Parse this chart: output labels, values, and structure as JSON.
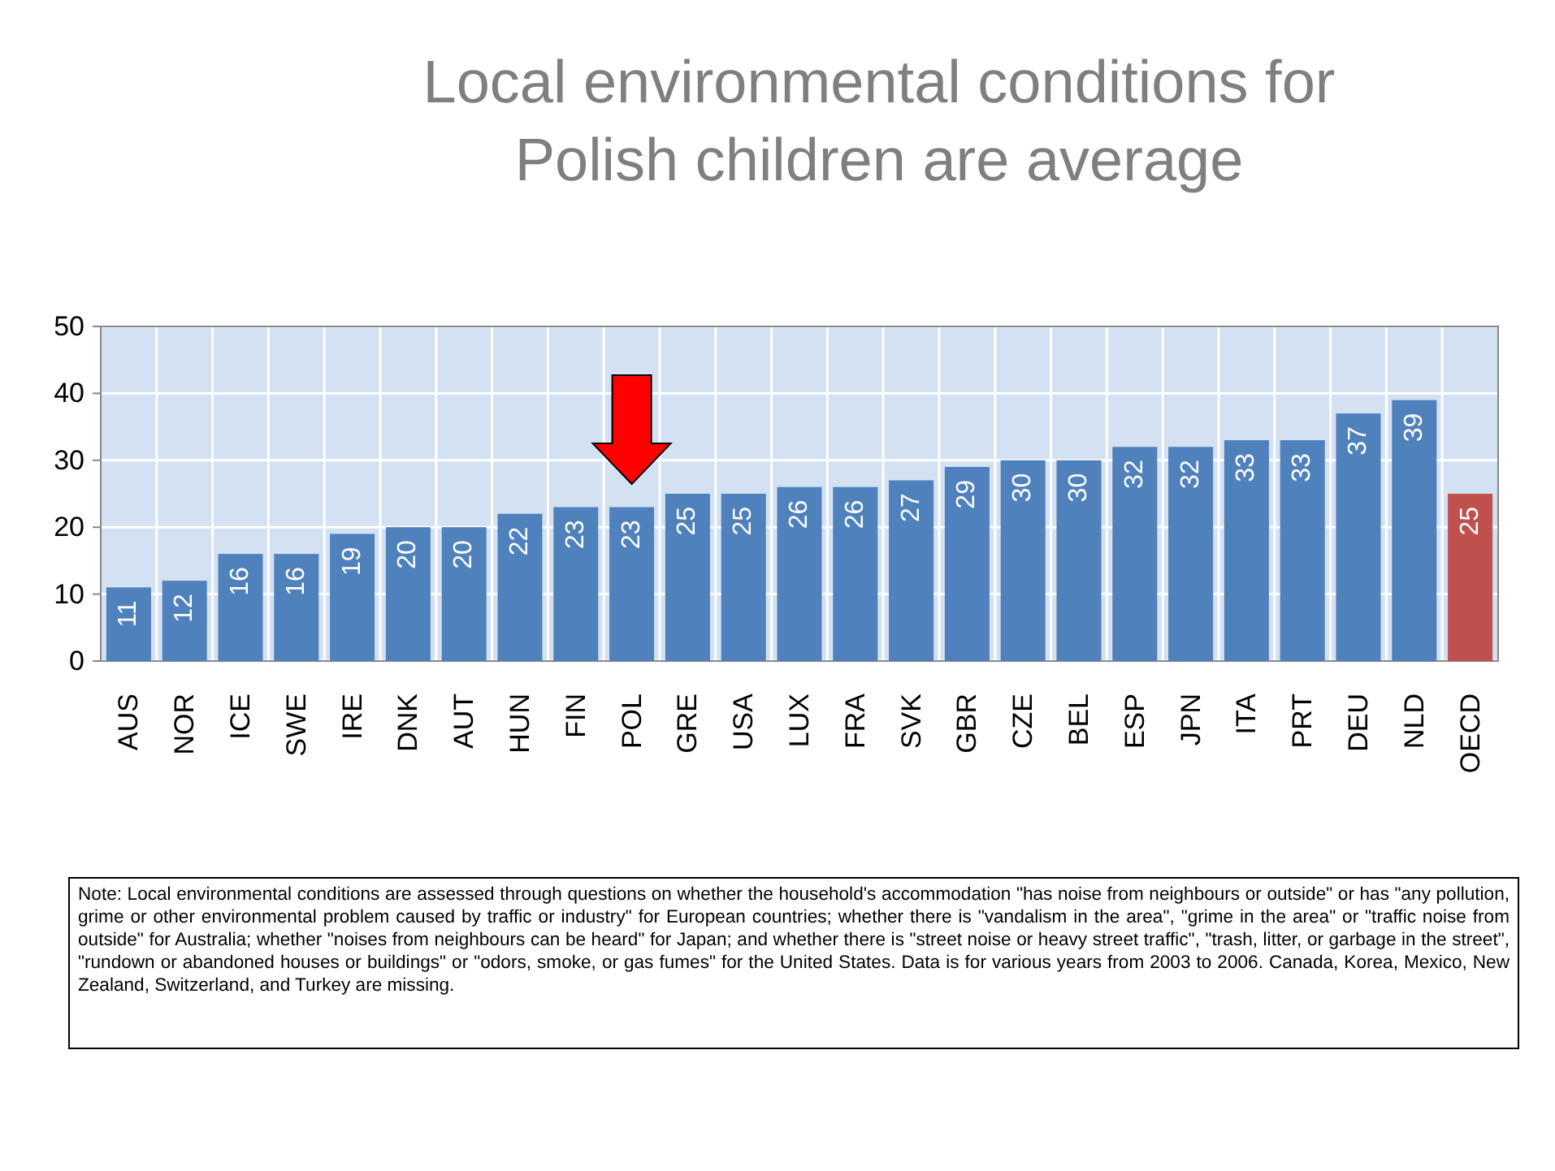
{
  "chart_data": {
    "type": "bar",
    "title": "Local environmental conditions for Polish children are average",
    "categories": [
      "AUS",
      "NOR",
      "ICE",
      "SWE",
      "IRE",
      "DNK",
      "AUT",
      "HUN",
      "FIN",
      "POL",
      "GRE",
      "USA",
      "LUX",
      "FRA",
      "SVK",
      "GBR",
      "CZE",
      "BEL",
      "ESP",
      "JPN",
      "ITA",
      "PRT",
      "DEU",
      "NLD",
      "OECD"
    ],
    "values": [
      11,
      12,
      16,
      16,
      19,
      20,
      20,
      22,
      23,
      23,
      25,
      25,
      26,
      26,
      27,
      29,
      30,
      30,
      32,
      32,
      33,
      33,
      37,
      39,
      25
    ],
    "colors": [
      "#4f81bd",
      "#4f81bd",
      "#4f81bd",
      "#4f81bd",
      "#4f81bd",
      "#4f81bd",
      "#4f81bd",
      "#4f81bd",
      "#4f81bd",
      "#4f81bd",
      "#4f81bd",
      "#4f81bd",
      "#4f81bd",
      "#4f81bd",
      "#4f81bd",
      "#4f81bd",
      "#4f81bd",
      "#4f81bd",
      "#4f81bd",
      "#4f81bd",
      "#4f81bd",
      "#4f81bd",
      "#4f81bd",
      "#4f81bd",
      "#c0504d"
    ],
    "ylim": [
      0,
      50
    ],
    "yticks": [
      0,
      10,
      20,
      30,
      40,
      50
    ],
    "grid": true,
    "data_labels": true,
    "annotations": [
      "Note: Local environmental conditions are assessed through questions on whether the household's accommodation \"has noise from neighbours or outside\" or has \"any pollution, grime or other environmental problem caused by traffic or industry\" for European countries; whether there is \"vandalism in the area\", \"grime in the area\" or \"traffic noise from outside\" for Australia; whether \"noises from neighbours can be heard\" for Japan; and whether there is \"street noise or heavy street traffic\", \"trash, litter, or garbage in the street\", \"rundown or abandoned houses or buildings\" or \"odors, smoke, or gas fumes\" for the United States. Data is for various years from 2003 to 2006. Canada, Korea, Mexico, New Zealand, Switzerland, and Turkey are missing."
    ]
  }
}
